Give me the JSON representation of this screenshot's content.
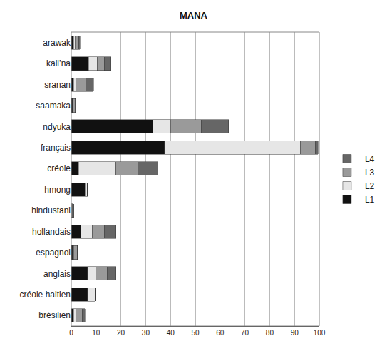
{
  "chart_data": {
    "type": "bar",
    "title": "MANA",
    "orientation": "horizontal",
    "stacked": true,
    "categories": [
      "arawak",
      "kali’na",
      "sranan",
      "saamaka",
      "ndyuka",
      "français",
      "créole",
      "hmong",
      "hindustani",
      "hollandais",
      "espagnol",
      "anglais",
      "créole haitien",
      "brésilien"
    ],
    "series": [
      {
        "name": "L1",
        "color": "#111111",
        "values": [
          1,
          7,
          1,
          0.5,
          33,
          37.5,
          3,
          5.5,
          0,
          4,
          0.5,
          6.5,
          6.5,
          1
        ]
      },
      {
        "name": "L2",
        "color": "#e6e6e6",
        "values": [
          0.5,
          3.5,
          1,
          0,
          7,
          55,
          15,
          1,
          0.5,
          4.5,
          0.5,
          3.5,
          3,
          1
        ]
      },
      {
        "name": "L3",
        "color": "#9a9a9a",
        "values": [
          1.5,
          3,
          4,
          1,
          12.5,
          6,
          9,
          0,
          0.5,
          5,
          1.5,
          4.5,
          0,
          2.5
        ]
      },
      {
        "name": "L4",
        "color": "#666666",
        "values": [
          0.5,
          2.5,
          3,
          0.5,
          11,
          1,
          8,
          0,
          0,
          4.5,
          0,
          3.5,
          0,
          1
        ]
      }
    ],
    "xlim": [
      0,
      100
    ],
    "xticks": [
      0,
      10,
      20,
      30,
      40,
      50,
      60,
      70,
      80,
      90,
      100
    ],
    "grid": true,
    "legend": "right"
  }
}
